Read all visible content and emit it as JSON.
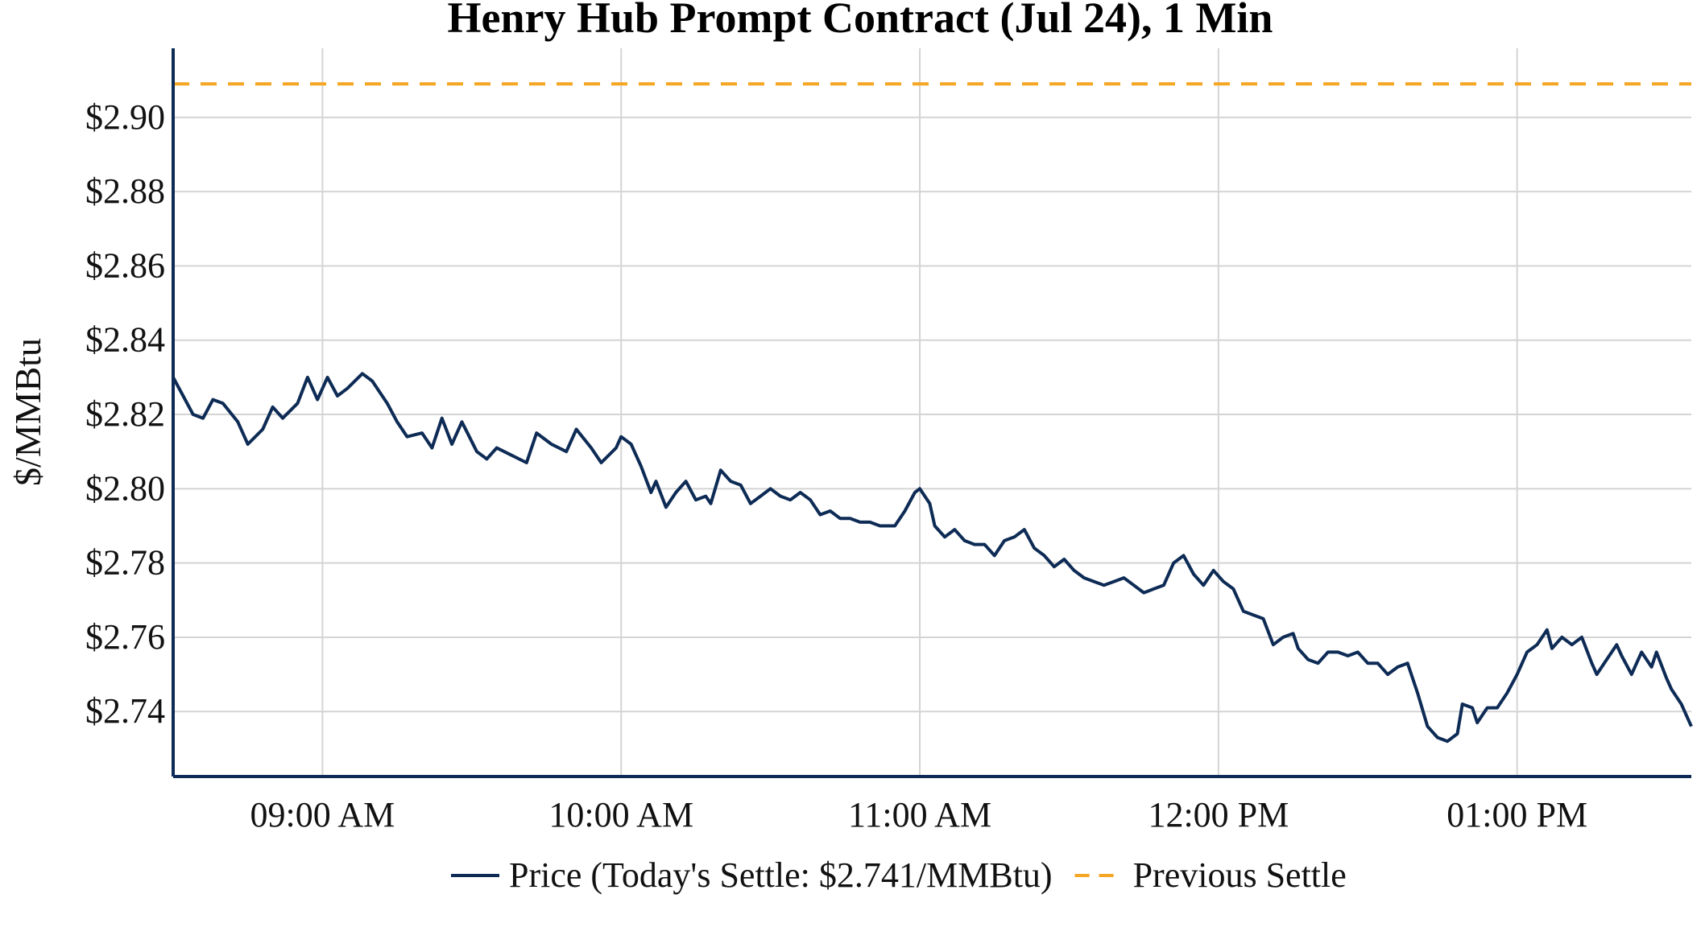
{
  "chart_data": {
    "type": "line",
    "title": "Henry Hub Prompt Contract (Jul 24), 1 Min",
    "xlabel": "",
    "ylabel": "$/MMBtu",
    "ylim": [
      2.7225,
      2.9186
    ],
    "yticks": [
      2.74,
      2.76,
      2.78,
      2.8,
      2.82,
      2.84,
      2.86,
      2.88,
      2.9
    ],
    "ytick_labels": [
      "$2.74",
      "$2.76",
      "$2.78",
      "$2.80",
      "$2.82",
      "$2.84",
      "$2.86",
      "$2.88",
      "$2.90"
    ],
    "xlim": [
      "08:30",
      "13:35"
    ],
    "xticks": [
      "09:00",
      "10:00",
      "11:00",
      "12:00",
      "13:00"
    ],
    "xtick_labels": [
      "09:00 AM",
      "10:00 AM",
      "11:00 AM",
      "12:00 PM",
      "01:00 PM"
    ],
    "grid": true,
    "legend": "bottom",
    "series": [
      {
        "name": "Price (Today's Settle: $2.741/MMBtu)",
        "color": "#0d2b55",
        "style": "solid",
        "points": [
          [
            "08:30",
            2.83
          ],
          [
            "08:32",
            2.825
          ],
          [
            "08:34",
            2.82
          ],
          [
            "08:36",
            2.819
          ],
          [
            "08:38",
            2.824
          ],
          [
            "08:40",
            2.823
          ],
          [
            "08:43",
            2.818
          ],
          [
            "08:45",
            2.812
          ],
          [
            "08:48",
            2.816
          ],
          [
            "08:50",
            2.822
          ],
          [
            "08:52",
            2.819
          ],
          [
            "08:55",
            2.823
          ],
          [
            "08:57",
            2.83
          ],
          [
            "08:59",
            2.824
          ],
          [
            "09:01",
            2.83
          ],
          [
            "09:03",
            2.825
          ],
          [
            "09:05",
            2.827
          ],
          [
            "09:08",
            2.831
          ],
          [
            "09:10",
            2.829
          ],
          [
            "09:13",
            2.823
          ],
          [
            "09:15",
            2.818
          ],
          [
            "09:17",
            2.814
          ],
          [
            "09:20",
            2.815
          ],
          [
            "09:22",
            2.811
          ],
          [
            "09:24",
            2.819
          ],
          [
            "09:26",
            2.812
          ],
          [
            "09:28",
            2.818
          ],
          [
            "09:31",
            2.81
          ],
          [
            "09:33",
            2.808
          ],
          [
            "09:35",
            2.811
          ],
          [
            "09:38",
            2.809
          ],
          [
            "09:41",
            2.807
          ],
          [
            "09:43",
            2.815
          ],
          [
            "09:46",
            2.812
          ],
          [
            "09:49",
            2.81
          ],
          [
            "09:51",
            2.816
          ],
          [
            "09:54",
            2.811
          ],
          [
            "09:56",
            2.807
          ],
          [
            "09:59",
            2.811
          ],
          [
            "10:00",
            2.814
          ],
          [
            "10:02",
            2.812
          ],
          [
            "10:04",
            2.806
          ],
          [
            "10:06",
            2.799
          ],
          [
            "10:07",
            2.802
          ],
          [
            "10:09",
            2.795
          ],
          [
            "10:11",
            2.799
          ],
          [
            "10:13",
            2.802
          ],
          [
            "10:15",
            2.797
          ],
          [
            "10:17",
            2.798
          ],
          [
            "10:18",
            2.796
          ],
          [
            "10:20",
            2.805
          ],
          [
            "10:22",
            2.802
          ],
          [
            "10:24",
            2.801
          ],
          [
            "10:26",
            2.796
          ],
          [
            "10:28",
            2.798
          ],
          [
            "10:30",
            2.8
          ],
          [
            "10:32",
            2.798
          ],
          [
            "10:34",
            2.797
          ],
          [
            "10:36",
            2.799
          ],
          [
            "10:38",
            2.797
          ],
          [
            "10:40",
            2.793
          ],
          [
            "10:42",
            2.794
          ],
          [
            "10:44",
            2.792
          ],
          [
            "10:46",
            2.792
          ],
          [
            "10:48",
            2.791
          ],
          [
            "10:50",
            2.791
          ],
          [
            "10:52",
            2.79
          ],
          [
            "10:55",
            2.79
          ],
          [
            "10:57",
            2.794
          ],
          [
            "10:59",
            2.799
          ],
          [
            "11:00",
            2.8
          ],
          [
            "11:02",
            2.796
          ],
          [
            "11:03",
            2.79
          ],
          [
            "11:05",
            2.787
          ],
          [
            "11:07",
            2.789
          ],
          [
            "11:09",
            2.786
          ],
          [
            "11:11",
            2.785
          ],
          [
            "11:13",
            2.785
          ],
          [
            "11:15",
            2.782
          ],
          [
            "11:17",
            2.786
          ],
          [
            "11:19",
            2.787
          ],
          [
            "11:21",
            2.789
          ],
          [
            "11:23",
            2.784
          ],
          [
            "11:25",
            2.782
          ],
          [
            "11:27",
            2.779
          ],
          [
            "11:29",
            2.781
          ],
          [
            "11:31",
            2.778
          ],
          [
            "11:33",
            2.776
          ],
          [
            "11:35",
            2.775
          ],
          [
            "11:37",
            2.774
          ],
          [
            "11:39",
            2.775
          ],
          [
            "11:41",
            2.776
          ],
          [
            "11:43",
            2.774
          ],
          [
            "11:45",
            2.772
          ],
          [
            "11:47",
            2.773
          ],
          [
            "11:49",
            2.774
          ],
          [
            "11:51",
            2.78
          ],
          [
            "11:53",
            2.782
          ],
          [
            "11:55",
            2.777
          ],
          [
            "11:57",
            2.774
          ],
          [
            "11:59",
            2.778
          ],
          [
            "12:01",
            2.775
          ],
          [
            "12:03",
            2.773
          ],
          [
            "12:05",
            2.767
          ],
          [
            "12:07",
            2.766
          ],
          [
            "12:09",
            2.765
          ],
          [
            "12:11",
            2.758
          ],
          [
            "12:13",
            2.76
          ],
          [
            "12:15",
            2.761
          ],
          [
            "12:16",
            2.757
          ],
          [
            "12:18",
            2.754
          ],
          [
            "12:20",
            2.753
          ],
          [
            "12:22",
            2.756
          ],
          [
            "12:24",
            2.756
          ],
          [
            "12:26",
            2.755
          ],
          [
            "12:28",
            2.756
          ],
          [
            "12:30",
            2.753
          ],
          [
            "12:32",
            2.753
          ],
          [
            "12:34",
            2.75
          ],
          [
            "12:36",
            2.752
          ],
          [
            "12:38",
            2.753
          ],
          [
            "12:40",
            2.745
          ],
          [
            "12:42",
            2.736
          ],
          [
            "12:44",
            2.733
          ],
          [
            "12:46",
            2.732
          ],
          [
            "12:48",
            2.734
          ],
          [
            "12:49",
            2.742
          ],
          [
            "12:51",
            2.741
          ],
          [
            "12:52",
            2.737
          ],
          [
            "12:54",
            2.741
          ],
          [
            "12:56",
            2.741
          ],
          [
            "12:58",
            2.745
          ],
          [
            "13:00",
            2.75
          ],
          [
            "13:02",
            2.756
          ],
          [
            "13:04",
            2.758
          ],
          [
            "13:06",
            2.762
          ],
          [
            "13:07",
            2.757
          ],
          [
            "13:09",
            2.76
          ],
          [
            "13:11",
            2.758
          ],
          [
            "13:13",
            2.76
          ],
          [
            "13:15",
            2.753
          ],
          [
            "13:16",
            2.75
          ],
          [
            "13:18",
            2.754
          ],
          [
            "13:20",
            2.758
          ],
          [
            "13:21",
            2.755
          ],
          [
            "13:23",
            2.75
          ],
          [
            "13:25",
            2.756
          ],
          [
            "13:27",
            2.752
          ],
          [
            "13:28",
            2.756
          ],
          [
            "13:30",
            2.749
          ],
          [
            "13:31",
            2.746
          ],
          [
            "13:33",
            2.742
          ],
          [
            "13:35",
            2.736
          ]
        ]
      },
      {
        "name": "Previous Settle",
        "color": "#f5a623",
        "style": "dashed",
        "value": 2.909
      }
    ]
  }
}
